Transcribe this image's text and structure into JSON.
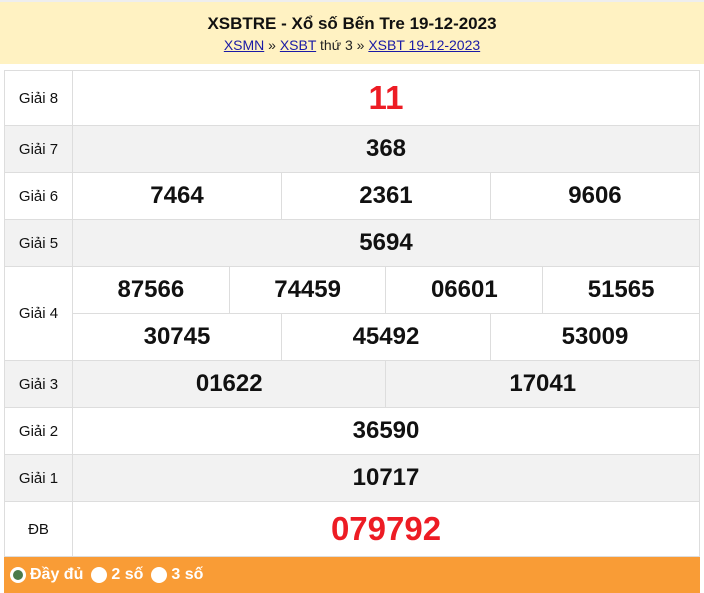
{
  "header": {
    "title": "XSBTRE - Xổ số Bến Tre 19-12-2023",
    "crumb": {
      "link1": "XSMN",
      "sep1": " » ",
      "link2": "XSBT",
      "text": " thứ 3 » ",
      "link3": "XSBT 19-12-2023"
    }
  },
  "prizes": {
    "g8": {
      "label": "Giải 8",
      "nums": [
        "11"
      ]
    },
    "g7": {
      "label": "Giải 7",
      "nums": [
        "368"
      ]
    },
    "g6": {
      "label": "Giải 6",
      "nums": [
        "7464",
        "2361",
        "9606"
      ]
    },
    "g5": {
      "label": "Giải 5",
      "nums": [
        "5694"
      ]
    },
    "g4": {
      "label": "Giải 4",
      "nums": [
        "87566",
        "74459",
        "06601",
        "51565",
        "30745",
        "45492",
        "53009"
      ]
    },
    "g3": {
      "label": "Giải 3",
      "nums": [
        "01622",
        "17041"
      ]
    },
    "g2": {
      "label": "Giải 2",
      "nums": [
        "36590"
      ]
    },
    "g1": {
      "label": "Giải 1",
      "nums": [
        "10717"
      ]
    },
    "db": {
      "label": "ĐB",
      "nums": [
        "079792"
      ]
    }
  },
  "footer": {
    "options": [
      {
        "label": "Đầy đủ",
        "selected": true
      },
      {
        "label": "2 số",
        "selected": false
      },
      {
        "label": "3 số",
        "selected": false
      }
    ]
  },
  "colors": {
    "header_bg": "#fff2c2",
    "footer_bg": "#f99c36",
    "highlight": "#ed1c24"
  }
}
